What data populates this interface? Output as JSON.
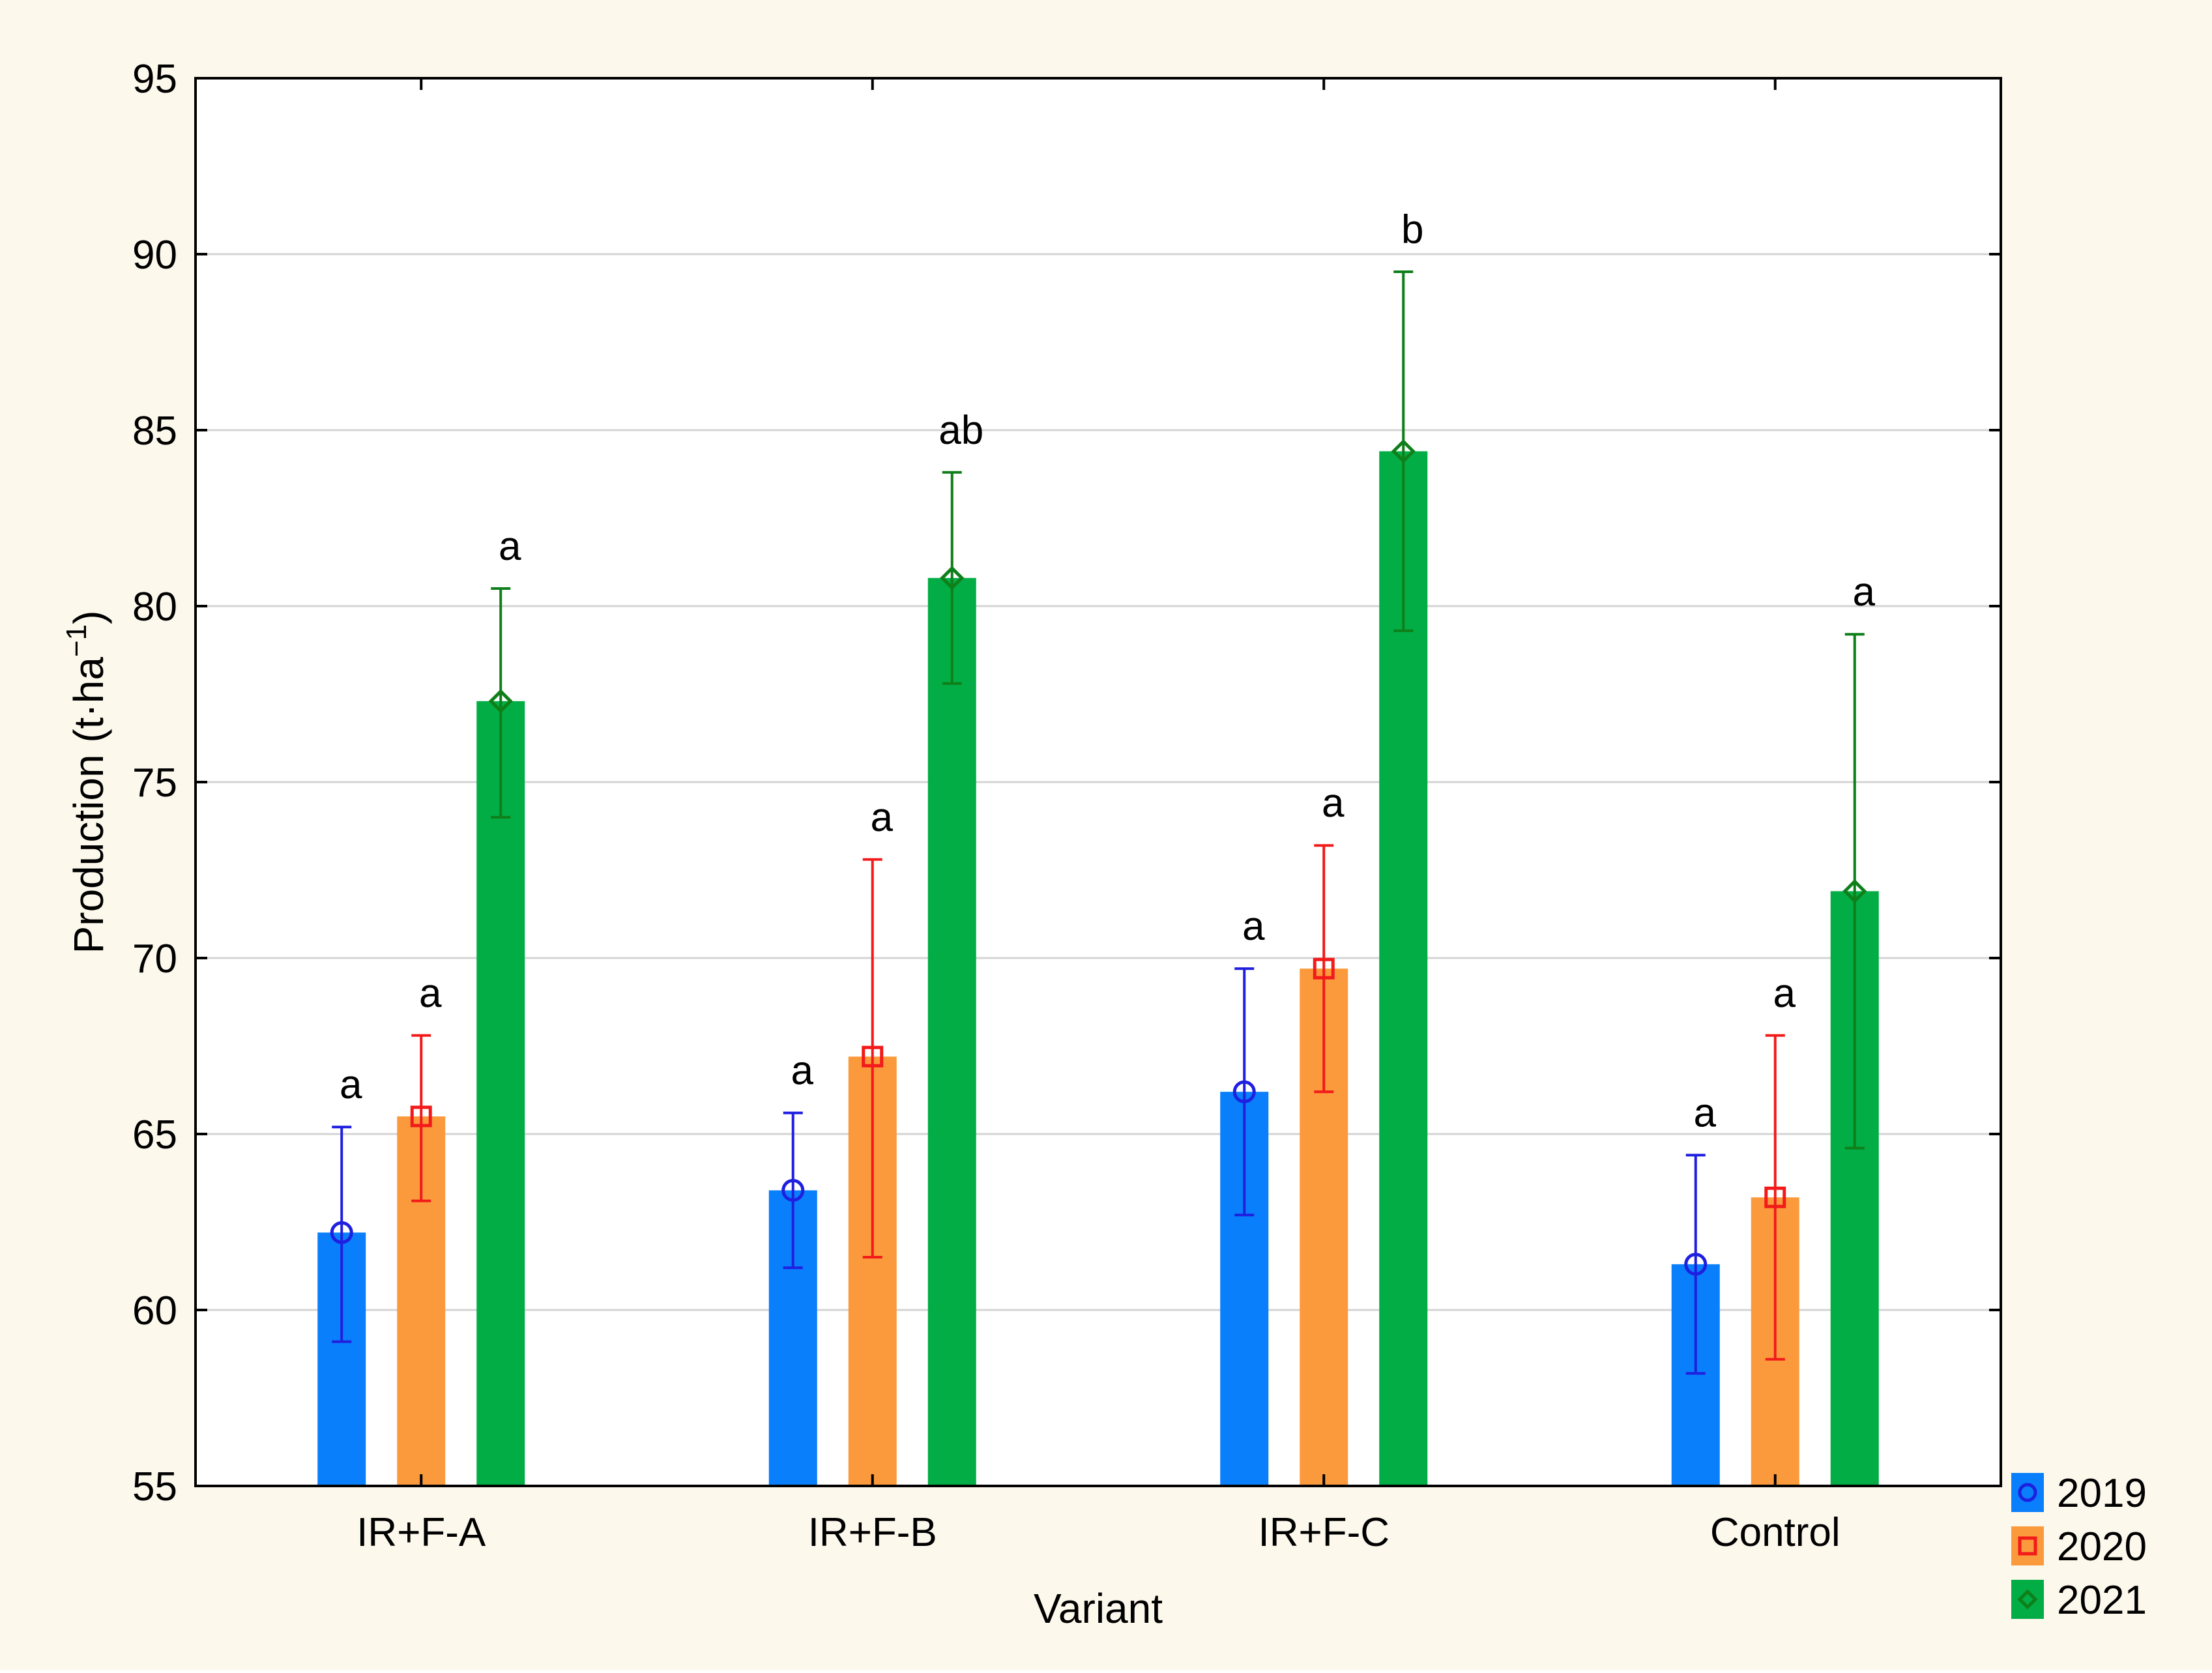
{
  "chart_data": {
    "type": "bar",
    "title": "",
    "xlabel": "Variant",
    "ylabel_main": "Production (t·ha",
    "ylabel_sup": "−1",
    "ylabel_close": ")",
    "ylim": [
      55,
      95
    ],
    "yticks": [
      55,
      60,
      65,
      70,
      75,
      80,
      85,
      90,
      95
    ],
    "ytick_labels": [
      "55",
      "60",
      "65",
      "70",
      "75",
      "80",
      "85",
      "90",
      "95"
    ],
    "grid": true,
    "legend_position": "bottom-right outside",
    "categories": [
      "IR+F-A",
      "IR+F-B",
      "IR+F-C",
      "Control"
    ],
    "series": [
      {
        "name": "2019",
        "color": "#0a7ffb",
        "marker": "circle",
        "marker_color": "#1f1fe0",
        "values": [
          62.2,
          63.4,
          66.2,
          61.3
        ],
        "err_low": [
          59.1,
          61.2,
          62.7,
          58.2
        ],
        "err_high": [
          65.2,
          65.6,
          69.7,
          64.4
        ],
        "letters": [
          "a",
          "a",
          "a",
          "a"
        ]
      },
      {
        "name": "2020",
        "color": "#fb9a3c",
        "marker": "square",
        "marker_color": "#f21a1a",
        "values": [
          65.5,
          67.2,
          69.7,
          63.2
        ],
        "err_low": [
          63.1,
          61.5,
          66.2,
          58.6
        ],
        "err_high": [
          67.8,
          72.8,
          73.2,
          67.8
        ],
        "letters": [
          "a",
          "a",
          "a",
          "a"
        ]
      },
      {
        "name": "2021",
        "color": "#02ad45",
        "marker": "diamond",
        "marker_color": "#0f7f1a",
        "values": [
          77.3,
          80.8,
          84.4,
          71.9
        ],
        "err_low": [
          74.0,
          77.8,
          79.3,
          64.6
        ],
        "err_high": [
          80.5,
          83.8,
          89.5,
          79.2
        ],
        "letters": [
          "a",
          "ab",
          "b",
          "a"
        ]
      }
    ]
  }
}
